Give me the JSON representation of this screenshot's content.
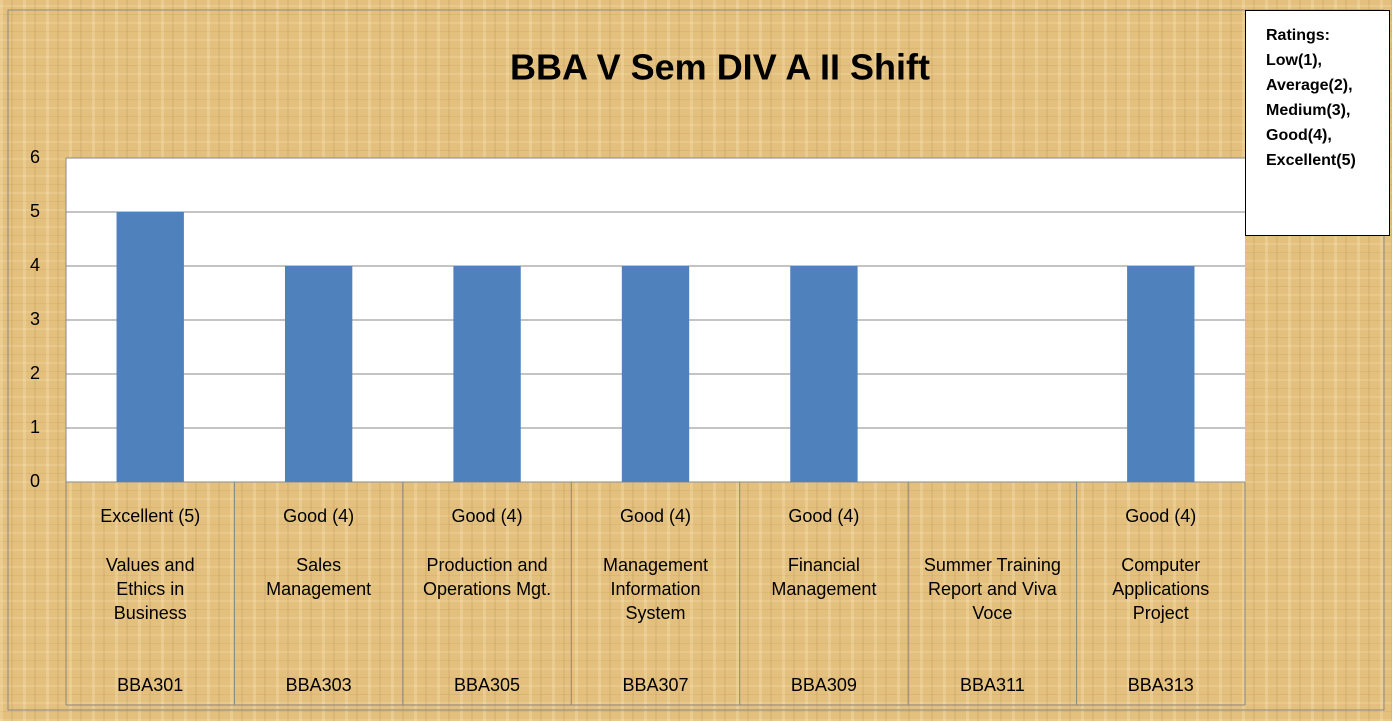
{
  "chart_data": {
    "type": "bar",
    "title": "BBA V Sem DIV A II Shift",
    "categories": [
      "Values and Ethics in Business",
      "Sales Management",
      "Production and Operations Mgt.",
      "Management Information System",
      "Financial Management",
      "Summer Training Report and Viva Voce",
      "Computer Applications Project"
    ],
    "codes": [
      "BBA301",
      "BBA303",
      "BBA305",
      "BBA307",
      "BBA309",
      "BBA311",
      "BBA313"
    ],
    "values": [
      5,
      4,
      4,
      4,
      4,
      null,
      4
    ],
    "value_labels": [
      "Excellent (5)",
      "Good (4)",
      "Good (4)",
      "Good (4)",
      "Good (4)",
      null,
      "Good (4)"
    ],
    "color": "#4f81bd",
    "ylim": [
      0,
      6
    ],
    "yticks": [
      0,
      1,
      2,
      3,
      4,
      5,
      6
    ],
    "grid": true,
    "annotation": [
      "Ratings:",
      "Low(1),",
      "Average(2),",
      "Medium(3),",
      "Good(4),",
      "Excellent(5)"
    ]
  }
}
